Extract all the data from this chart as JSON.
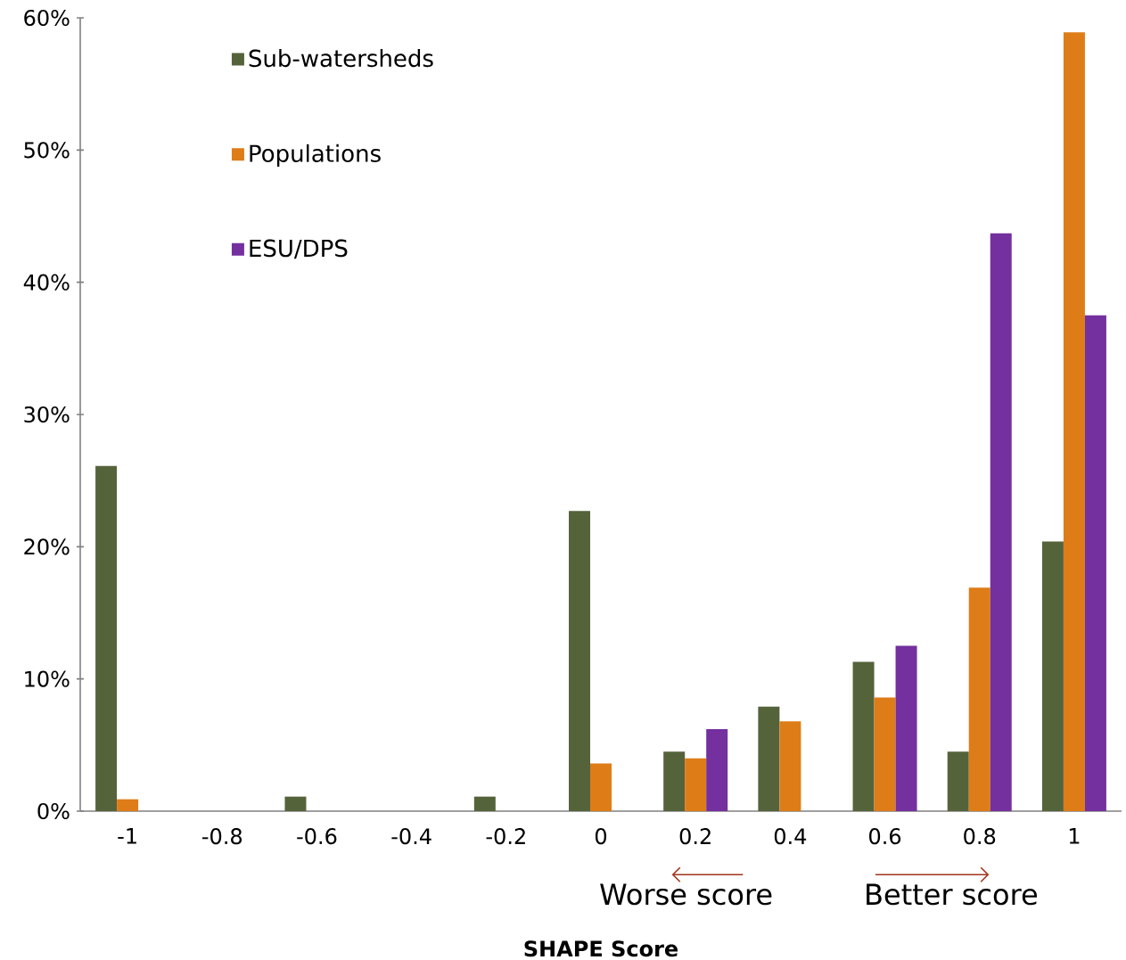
{
  "chart_data": {
    "type": "bar",
    "xlabel": "SHAPE Score",
    "categories": [
      "-1",
      "-0.8",
      "-0.6",
      "-0.4",
      "-0.2",
      "0",
      "0.2",
      "0.4",
      "0.6",
      "0.8",
      "1"
    ],
    "series": [
      {
        "name": "Sub-watersheds",
        "color": "#55633b",
        "values": [
          26.1,
          0,
          1.1,
          0,
          1.1,
          22.7,
          4.5,
          7.9,
          11.3,
          4.5,
          20.4
        ]
      },
      {
        "name": "Populations",
        "color": "#de7c18",
        "values": [
          0.9,
          0,
          0,
          0,
          0,
          3.6,
          4.0,
          6.8,
          8.6,
          16.9,
          58.9
        ]
      },
      {
        "name": "ESU/DPS",
        "color": "#73309e",
        "values": [
          0,
          0,
          0,
          0,
          0,
          0,
          6.2,
          0,
          12.5,
          43.7,
          37.5
        ]
      }
    ],
    "ylim": [
      0,
      60
    ],
    "yticks": [
      {
        "value": 0,
        "label": "0%"
      },
      {
        "value": 10,
        "label": "10%"
      },
      {
        "value": 20,
        "label": "20%"
      },
      {
        "value": 30,
        "label": "30%"
      },
      {
        "value": 40,
        "label": "40%"
      },
      {
        "value": 50,
        "label": "50%"
      },
      {
        "value": 60,
        "label": "60%"
      }
    ],
    "annotations": [
      "Worse score",
      "Better score"
    ],
    "legend": "top left",
    "grid": false
  }
}
